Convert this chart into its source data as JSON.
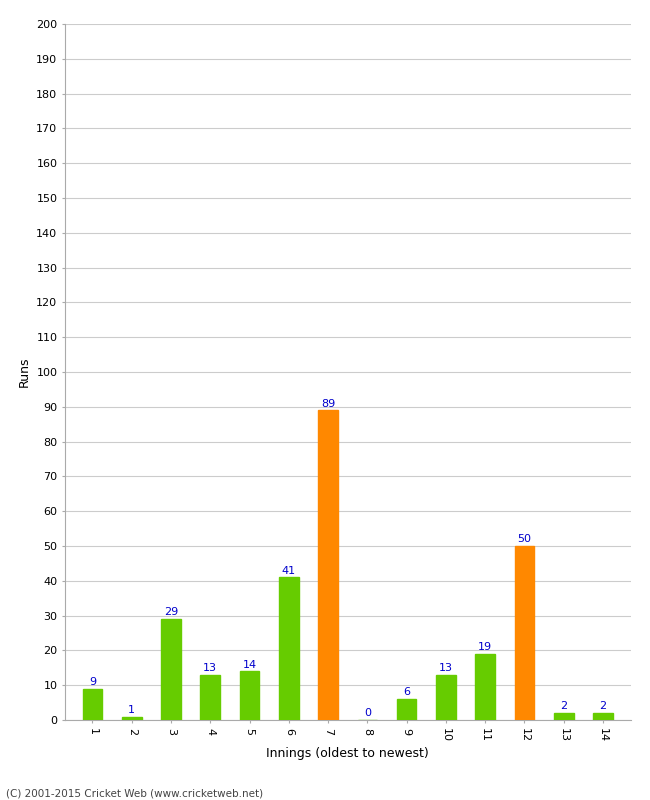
{
  "xlabel": "Innings (oldest to newest)",
  "ylabel": "Runs",
  "categories": [
    1,
    2,
    3,
    4,
    5,
    6,
    7,
    8,
    9,
    10,
    11,
    12,
    13,
    14
  ],
  "values": [
    9,
    1,
    29,
    13,
    14,
    41,
    89,
    0,
    6,
    13,
    19,
    50,
    2,
    2
  ],
  "bar_colors": [
    "#66cc00",
    "#66cc00",
    "#66cc00",
    "#66cc00",
    "#66cc00",
    "#66cc00",
    "#ff8800",
    "#66cc00",
    "#66cc00",
    "#66cc00",
    "#66cc00",
    "#ff8800",
    "#66cc00",
    "#66cc00"
  ],
  "ylim": [
    0,
    200
  ],
  "yticks": [
    0,
    10,
    20,
    30,
    40,
    50,
    60,
    70,
    80,
    90,
    100,
    110,
    120,
    130,
    140,
    150,
    160,
    170,
    180,
    190,
    200
  ],
  "label_color": "#0000cc",
  "label_fontsize": 8,
  "axis_label_fontsize": 9,
  "tick_fontsize": 8,
  "footer": "(C) 2001-2015 Cricket Web (www.cricketweb.net)",
  "background_color": "#ffffff",
  "grid_color": "#cccccc",
  "bar_width": 0.5
}
